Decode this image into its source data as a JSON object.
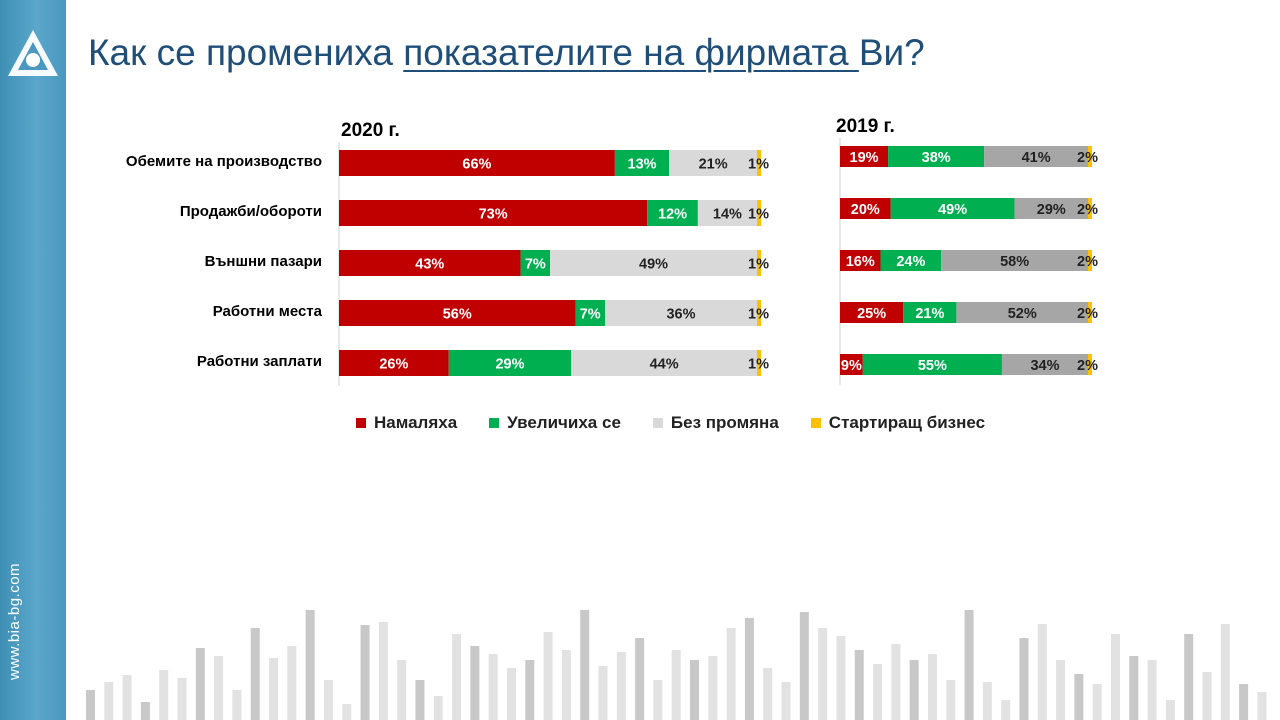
{
  "title": {
    "prefix": "Как се промениха ",
    "underlined": "показателите на фирмата ",
    "suffix": "Ви?"
  },
  "sidebar": {
    "site": "www.bia-bg.com"
  },
  "colors": {
    "decreased": "#c00000",
    "increased": "#00b050",
    "unchanged": "#d9d9d9",
    "unchanged_2019": "#a6a6a6",
    "startup": "#ffc000",
    "title": "#1f4e79"
  },
  "chart_data": [
    {
      "type": "bar",
      "stacked": true,
      "orientation": "horizontal",
      "title": "2020 г.",
      "categories": [
        "Обемите на производство",
        "Продажби/обороти",
        "Външни пазари",
        "Работни места",
        "Работни заплати"
      ],
      "xlim": [
        0,
        100
      ],
      "series": [
        {
          "name": "Намаляха",
          "values": [
            66,
            73,
            43,
            56,
            26
          ]
        },
        {
          "name": "Увеличиха се",
          "values": [
            13,
            12,
            7,
            7,
            29
          ]
        },
        {
          "name": "Без промяна",
          "values": [
            21,
            14,
            49,
            36,
            44
          ]
        },
        {
          "name": "Стартиращ бизнес",
          "values": [
            1,
            1,
            1,
            1,
            1
          ]
        }
      ]
    },
    {
      "type": "bar",
      "stacked": true,
      "orientation": "horizontal",
      "title": "2019 г.",
      "categories": [
        "Обемите на производство",
        "Продажби/обороти",
        "Външни пазари",
        "Работни места",
        "Работни заплати"
      ],
      "xlim": [
        0,
        100
      ],
      "series": [
        {
          "name": "Намаляха",
          "values": [
            19,
            20,
            16,
            25,
            9
          ]
        },
        {
          "name": "Увеличиха се",
          "values": [
            38,
            49,
            24,
            21,
            55
          ]
        },
        {
          "name": "Без промяна",
          "values": [
            41,
            29,
            58,
            52,
            34
          ]
        },
        {
          "name": "Стартиращ бизнес",
          "values": [
            2,
            2,
            2,
            2,
            2
          ]
        }
      ]
    }
  ],
  "legend": [
    {
      "label": "Намаляха",
      "color": "#c00000"
    },
    {
      "label": "Увеличиха се",
      "color": "#00b050"
    },
    {
      "label": "Без промяна",
      "color": "#d9d9d9"
    },
    {
      "label": "Стартиращ бизнес",
      "color": "#ffc000"
    }
  ]
}
